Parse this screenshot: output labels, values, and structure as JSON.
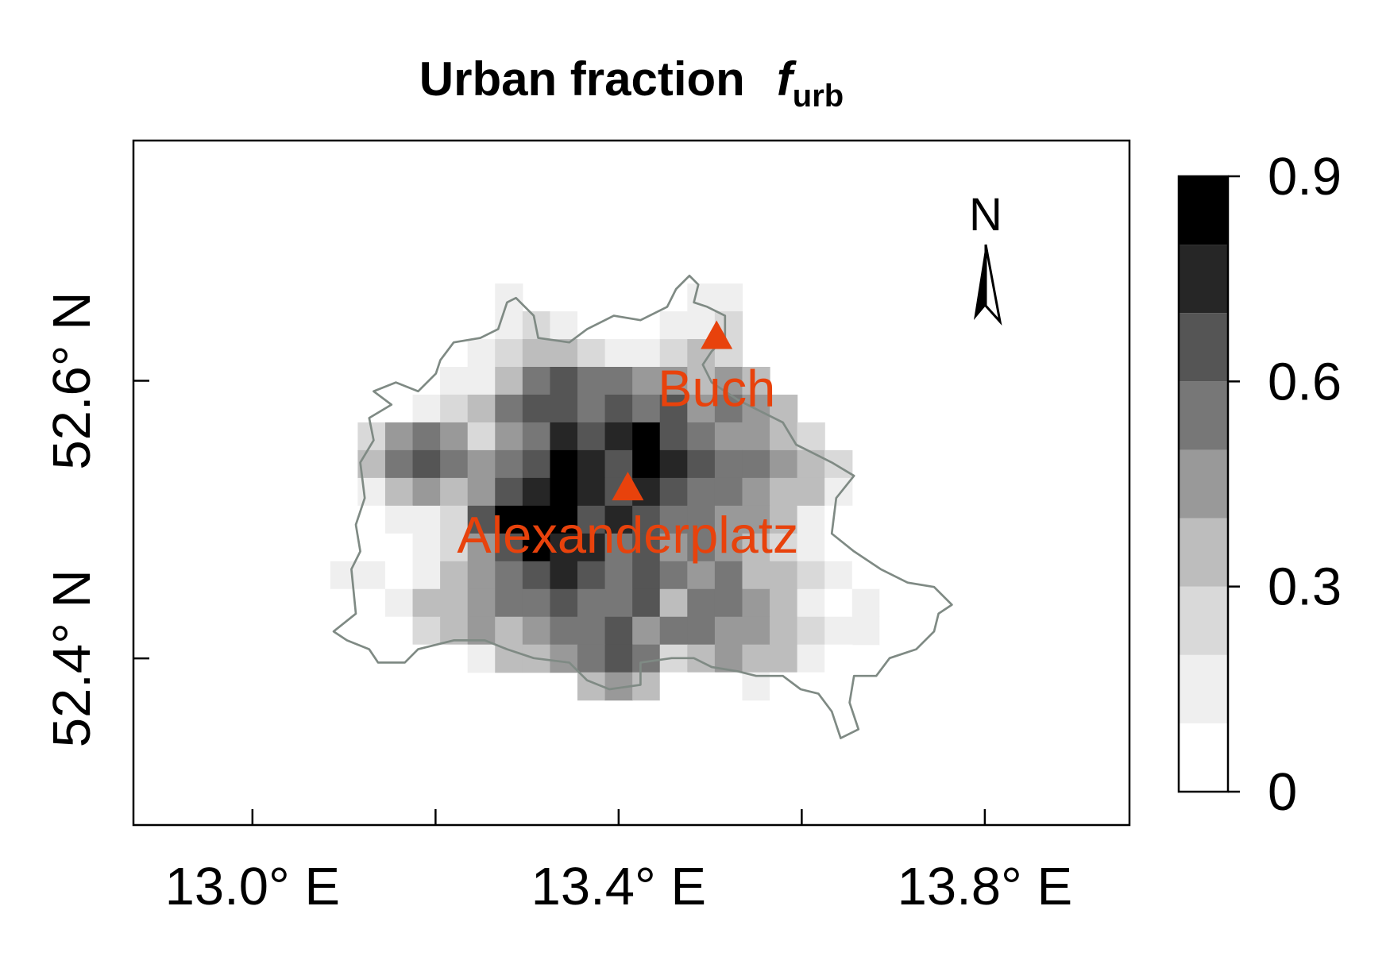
{
  "chart_data": {
    "type": "heatmap",
    "title": "Urban fraction",
    "title_symbol": "f",
    "title_subscript": "urb",
    "north_label": "N",
    "xlim": [
      12.87,
      13.958
    ],
    "ylim": [
      52.28,
      52.773
    ],
    "xticks": [
      {
        "value": 13.0,
        "label": "13.0° E"
      },
      {
        "value": 13.4,
        "label": "13.4° E"
      },
      {
        "value": 13.8,
        "label": "13.8° E"
      }
    ],
    "xminorticks": [
      13.2,
      13.6
    ],
    "yticks": [
      {
        "value": 52.4,
        "label": "52.4° N"
      },
      {
        "value": 52.6,
        "label": "52.6° N"
      }
    ],
    "x": [
      13.1,
      13.13,
      13.16,
      13.19,
      13.22,
      13.25,
      13.28,
      13.31,
      13.34,
      13.37,
      13.4,
      13.43,
      13.46,
      13.49,
      13.52,
      13.55,
      13.58,
      13.61,
      13.64,
      13.67,
      13.7,
      13.73,
      13.76
    ],
    "y": [
      52.68,
      52.66,
      52.64,
      52.62,
      52.6,
      52.58,
      52.56,
      52.54,
      52.52,
      52.5,
      52.48,
      52.46,
      52.44,
      52.42,
      52.4,
      52.38,
      52.36
    ],
    "z": [
      [
        null,
        null,
        null,
        null,
        null,
        null,
        null,
        null,
        null,
        null,
        null,
        null,
        null,
        0,
        0,
        null,
        null,
        null,
        null,
        null,
        null,
        null,
        null
      ],
      [
        null,
        null,
        null,
        null,
        null,
        null,
        0.1,
        null,
        null,
        null,
        null,
        null,
        0,
        0.1,
        0.1,
        null,
        null,
        null,
        null,
        null,
        null,
        null,
        null
      ],
      [
        null,
        null,
        null,
        null,
        null,
        0,
        0.1,
        0.2,
        0.1,
        0,
        0,
        0,
        0.1,
        0.1,
        0.2,
        null,
        null,
        null,
        null,
        null,
        null,
        null,
        null
      ],
      [
        null,
        null,
        null,
        null,
        0,
        0.1,
        0.2,
        0.3,
        0.3,
        0.2,
        0.1,
        0.1,
        0.2,
        0.3,
        0.2,
        null,
        null,
        null,
        null,
        null,
        null,
        null,
        null
      ],
      [
        null,
        null,
        0,
        0,
        0.1,
        0.1,
        0.3,
        0.5,
        0.6,
        0.5,
        0.5,
        0.4,
        0.4,
        0.3,
        0.4,
        0.3,
        null,
        null,
        null,
        null,
        null,
        null,
        null
      ],
      [
        null,
        0,
        0,
        0.1,
        0.2,
        0.3,
        0.5,
        0.6,
        0.6,
        0.5,
        0.6,
        0.5,
        0.6,
        0.4,
        0.5,
        0.4,
        0.3,
        null,
        null,
        null,
        null,
        null,
        null
      ],
      [
        null,
        0.2,
        0.4,
        0.5,
        0.4,
        0.2,
        0.4,
        0.5,
        0.7,
        0.6,
        0.7,
        0.8,
        0.6,
        0.5,
        0.4,
        0.4,
        0.3,
        0.2,
        null,
        null,
        null,
        null,
        null
      ],
      [
        null,
        0.3,
        0.5,
        0.6,
        0.5,
        0.4,
        0.5,
        0.6,
        0.8,
        0.7,
        0.6,
        0.8,
        0.7,
        0.6,
        0.5,
        0.5,
        0.4,
        0.3,
        0.2,
        null,
        null,
        null,
        null
      ],
      [
        null,
        0.1,
        0.3,
        0.4,
        0.3,
        0.4,
        0.6,
        0.7,
        0.8,
        0.7,
        0.6,
        0.7,
        0.6,
        0.5,
        0.5,
        0.4,
        0.3,
        0.3,
        0.1,
        null,
        null,
        null,
        null
      ],
      [
        null,
        0,
        0.1,
        0.1,
        0.2,
        0.6,
        0.8,
        0.9,
        0.8,
        0.6,
        0.7,
        0.6,
        0.5,
        0.5,
        0.4,
        0.4,
        0.3,
        0.1,
        0,
        null,
        null,
        null,
        null
      ],
      [
        null,
        0,
        0,
        0.1,
        0.2,
        0.4,
        0.6,
        0.8,
        0.7,
        0.7,
        0.5,
        0.6,
        0.4,
        0.5,
        0.4,
        0.3,
        0.2,
        0.1,
        0,
        0,
        0,
        null,
        null
      ],
      [
        0.1,
        0.1,
        0,
        0.1,
        0.3,
        0.4,
        0.5,
        0.6,
        0.7,
        0.6,
        0.5,
        0.6,
        0.5,
        0.4,
        0.5,
        0.3,
        0.3,
        0.2,
        0.1,
        0,
        0,
        0,
        null
      ],
      [
        0,
        0,
        0.1,
        0.3,
        0.3,
        0.4,
        0.5,
        0.5,
        0.6,
        0.5,
        0.5,
        0.6,
        0.3,
        0.5,
        0.5,
        0.4,
        0.3,
        0.1,
        0,
        0.1,
        0,
        0,
        0
      ],
      [
        0,
        0,
        0,
        0.2,
        0.3,
        0.4,
        0.3,
        0.4,
        0.5,
        0.5,
        0.6,
        0.4,
        0.5,
        0.5,
        0.4,
        0.4,
        0.3,
        0.2,
        0.1,
        0.1,
        0,
        null,
        null
      ],
      [
        null,
        null,
        0,
        0,
        0,
        0.1,
        0.3,
        0.3,
        0.4,
        0.5,
        0.6,
        0.5,
        0.2,
        0.3,
        0.4,
        0.3,
        0.3,
        0.1,
        0,
        null,
        null,
        null,
        null
      ],
      [
        null,
        null,
        null,
        null,
        null,
        null,
        null,
        null,
        null,
        0.3,
        0.4,
        0.3,
        0,
        0,
        0,
        0.1,
        0,
        0,
        0,
        null,
        null,
        null,
        null
      ],
      [
        null,
        null,
        null,
        null,
        null,
        null,
        null,
        null,
        null,
        null,
        null,
        null,
        null,
        null,
        null,
        null,
        null,
        0,
        null,
        null,
        null,
        null,
        null
      ]
    ],
    "colorbar": {
      "levels": [
        0,
        0.1,
        0.2,
        0.3,
        0.4,
        0.5,
        0.6,
        0.7,
        0.8,
        0.9
      ],
      "colors": [
        "#ffffff",
        "#efefef",
        "#d9d9d9",
        "#bdbdbd",
        "#999999",
        "#777777",
        "#555555",
        "#262626",
        "#000000"
      ],
      "ticks": [
        0,
        0.3,
        0.6,
        0.9
      ]
    },
    "points": [
      {
        "name": "Buch",
        "lon": 13.507,
        "lat": 52.632,
        "color": "#e8420c"
      },
      {
        "name": "Alexanderplatz",
        "lon": 13.41,
        "lat": 52.523,
        "color": "#e8420c"
      }
    ]
  }
}
